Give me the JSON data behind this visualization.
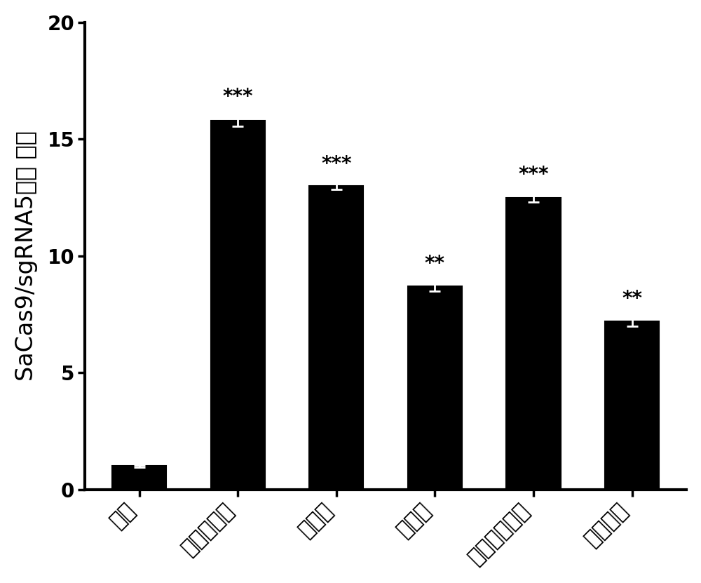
{
  "categories": [
    "对照",
    "腺相关病毒",
    "慢病毒",
    "腺病毒",
    "单纯疱疹病毒",
    "纳米材料"
  ],
  "values": [
    1.0,
    15.8,
    13.0,
    8.7,
    12.5,
    7.2
  ],
  "errors": [
    0.05,
    0.25,
    0.15,
    0.2,
    0.2,
    0.2
  ],
  "bar_color": "#000000",
  "error_color": "#000000",
  "significance": [
    "",
    "***",
    "***",
    "**",
    "***",
    "**"
  ],
  "ylabel_part1": "SaCas9/sgRNA5",
  "ylabel_part2": "相对",
  "ylabel_part3": " 活性",
  "ylim": [
    0,
    20
  ],
  "yticks": [
    0,
    5,
    10,
    15,
    20
  ],
  "background_color": "#ffffff",
  "bar_width": 0.55,
  "sig_fontsize": 20,
  "ylabel_fontsize": 24,
  "tick_fontsize": 20,
  "xtick_fontsize": 22
}
